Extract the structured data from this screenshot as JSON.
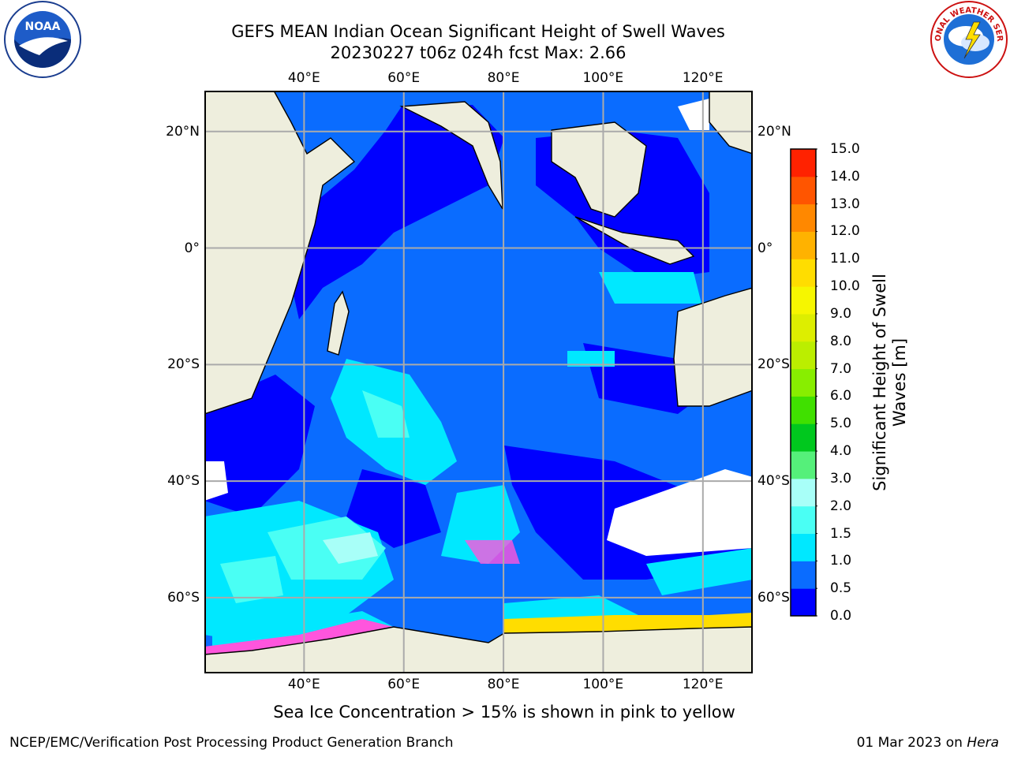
{
  "title": {
    "line1": "GEFS MEAN Indian Ocean Significant Height of Swell Waves",
    "line2": "20230227 t06z 024h fcst   Max: 2.66"
  },
  "logos": {
    "left": {
      "icon": "noaa-logo",
      "text": "NOAA"
    },
    "right": {
      "icon": "national-weather-service-logo",
      "text": "NATIONAL WEATHER SERVICE"
    }
  },
  "map": {
    "projection": "equirectangular",
    "lon_range": [
      20,
      130
    ],
    "lat_range": [
      -73,
      27
    ],
    "gridlines": true,
    "lon_ticks": [
      "40°E",
      "60°E",
      "80°E",
      "100°E",
      "120°E"
    ],
    "lat_ticks": [
      "20°N",
      "0°",
      "20°S",
      "40°S",
      "60°S"
    ],
    "lon_tick_values": [
      40,
      60,
      80,
      100,
      120
    ],
    "lat_tick_values": [
      20,
      0,
      -20,
      -40,
      -60
    ],
    "colors": {
      "land": "#eeeedd",
      "no_data": "#ffffff",
      "grid": "#aaaaaa",
      "sea_ice": "#ff55dd"
    }
  },
  "colorbar": {
    "title": "Significant Height of Swell Waves [m]",
    "labels": [
      "0.0",
      "0.5",
      "1.0",
      "1.5",
      "2.0",
      "3.0",
      "4.0",
      "5.0",
      "6.0",
      "7.0",
      "8.0",
      "9.0",
      "10.0",
      "11.0",
      "12.0",
      "13.0",
      "14.0",
      "15.0"
    ],
    "colors": [
      "#0000ff",
      "#0a6cff",
      "#00e8ff",
      "#4afff4",
      "#a8fff8",
      "#55f07a",
      "#00c81e",
      "#40e000",
      "#88ee00",
      "#bbee00",
      "#ddee00",
      "#f6f600",
      "#ffdd00",
      "#ffb200",
      "#ff8800",
      "#ff5500",
      "#ff2200",
      "#ff0000"
    ]
  },
  "caption": "Sea Ice Concentration > 15% is shown in pink to yellow",
  "footer": {
    "left": "NCEP/EMC/Verification Post Processing Product Generation Branch",
    "right_prefix": "01 Mar 2023 on",
    "right_machine": "Hera"
  }
}
